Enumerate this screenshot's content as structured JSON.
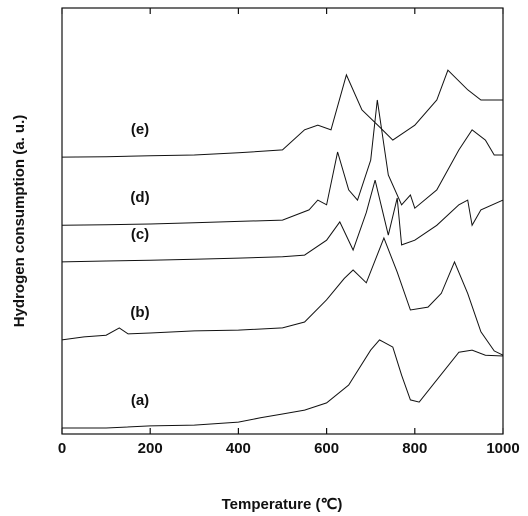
{
  "chart_data": {
    "type": "line",
    "xlabel": "Temperature (℃)",
    "ylabel": "Hydrogen consumption (a. u.)",
    "xlim": [
      0,
      1000
    ],
    "xticks": [
      0,
      200,
      400,
      600,
      800,
      1000
    ],
    "ylim": [
      0,
      100
    ],
    "series": [
      {
        "name": "(a)",
        "color": "#111111",
        "x": [
          0,
          50,
          100,
          200,
          300,
          400,
          450,
          500,
          550,
          600,
          650,
          700,
          720,
          750,
          770,
          790,
          810,
          850,
          900,
          930,
          960,
          1000
        ],
        "values": [
          1.4,
          1.4,
          1.4,
          1.9,
          2.1,
          2.8,
          3.8,
          4.7,
          5.6,
          7.3,
          11.5,
          19.7,
          22.1,
          20.4,
          13.8,
          8.0,
          7.5,
          12.7,
          19.2,
          19.7,
          18.5,
          18.3
        ]
      },
      {
        "name": "(b)",
        "color": "#111111",
        "x": [
          0,
          50,
          100,
          130,
          150,
          200,
          300,
          400,
          500,
          550,
          600,
          640,
          660,
          690,
          730,
          760,
          790,
          830,
          860,
          890,
          920,
          950,
          980,
          1000
        ],
        "values": [
          22.1,
          22.8,
          23.2,
          24.9,
          23.5,
          23.7,
          24.2,
          24.4,
          24.9,
          26.3,
          31.5,
          36.5,
          38.5,
          35.5,
          46.0,
          38.0,
          29.1,
          29.8,
          33.0,
          40.4,
          33.0,
          24.0,
          19.5,
          18.5
        ]
      },
      {
        "name": "(c)",
        "color": "#111111",
        "x": [
          0,
          100,
          200,
          300,
          400,
          500,
          550,
          600,
          630,
          660,
          690,
          710,
          740,
          760,
          770,
          800,
          850,
          900,
          920,
          930,
          950,
          1000
        ],
        "values": [
          40.4,
          40.6,
          40.8,
          41.0,
          41.3,
          41.6,
          42.0,
          45.5,
          49.8,
          43.2,
          52.0,
          59.6,
          46.7,
          55.4,
          44.4,
          45.5,
          49.0,
          53.8,
          54.9,
          49.0,
          52.6,
          54.9
        ]
      },
      {
        "name": "(d)",
        "color": "#111111",
        "x": [
          0,
          100,
          200,
          300,
          400,
          500,
          560,
          580,
          600,
          625,
          650,
          670,
          700,
          715,
          740,
          770,
          790,
          800,
          850,
          900,
          930,
          960,
          980,
          1000
        ],
        "values": [
          49.0,
          49.1,
          49.3,
          49.6,
          49.9,
          50.2,
          52.6,
          54.9,
          53.8,
          66.2,
          57.3,
          54.9,
          64.3,
          78.4,
          60.8,
          53.8,
          56.1,
          53.0,
          57.3,
          66.7,
          71.4,
          69.0,
          65.5,
          65.5
        ]
      },
      {
        "name": "(e)",
        "color": "#111111",
        "x": [
          0,
          100,
          200,
          300,
          400,
          500,
          550,
          580,
          610,
          645,
          680,
          720,
          750,
          800,
          850,
          875,
          920,
          950,
          1000
        ],
        "values": [
          65.0,
          65.1,
          65.3,
          65.5,
          66.0,
          66.7,
          71.4,
          72.5,
          71.4,
          84.3,
          76.1,
          72.1,
          69.0,
          72.5,
          78.4,
          85.4,
          80.8,
          78.4,
          78.4
        ]
      }
    ]
  }
}
